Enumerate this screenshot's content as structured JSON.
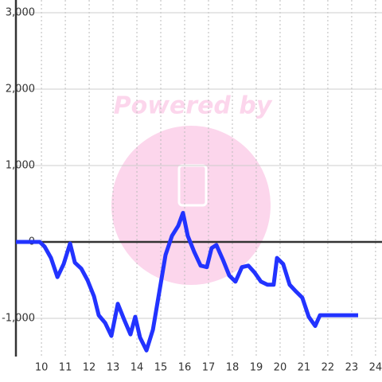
{
  "chart_data": {
    "type": "line",
    "watermark": "Powered by",
    "x": [
      8.93,
      9.93,
      10.13,
      10.4,
      10.67,
      10.93,
      11.2,
      11.4,
      11.67,
      11.93,
      12.2,
      12.4,
      12.67,
      12.93,
      13.2,
      13.47,
      13.73,
      13.93,
      14.13,
      14.4,
      14.67,
      14.93,
      15.2,
      15.47,
      15.73,
      15.93,
      16.13,
      16.4,
      16.67,
      16.93,
      17.13,
      17.33,
      17.6,
      17.87,
      18.13,
      18.4,
      18.67,
      18.93,
      19.2,
      19.47,
      19.73,
      19.87,
      20.13,
      20.4,
      20.67,
      20.93,
      21.2,
      21.47,
      21.67,
      21.93,
      23.27
    ],
    "series": [
      {
        "color": "#2233ff",
        "values": [
          0,
          0,
          -60,
          -210,
          -460,
          -290,
          -20,
          -270,
          -350,
          -500,
          -710,
          -960,
          -1060,
          -1230,
          -810,
          -1020,
          -1210,
          -980,
          -1250,
          -1420,
          -1150,
          -670,
          -170,
          80,
          210,
          380,
          80,
          -130,
          -310,
          -330,
          -80,
          -40,
          -230,
          -440,
          -520,
          -330,
          -310,
          -400,
          -520,
          -560,
          -560,
          -210,
          -290,
          -560,
          -650,
          -730,
          -980,
          -1100,
          -960,
          -960,
          -960
        ]
      }
    ],
    "xlim": [
      8.93,
      24.27
    ],
    "xticks": [
      10,
      11,
      12,
      13,
      14,
      15,
      16,
      17,
      18,
      19,
      20,
      21,
      22,
      23,
      24
    ],
    "ylim": [
      -1500,
      3000
    ],
    "yticks": [
      {
        "value": -1000,
        "label": "-1,000"
      },
      0,
      {
        "value": 1000,
        "label": "1,000"
      },
      {
        "value": 2000,
        "label": "2,000"
      },
      {
        "value": 3000,
        "label": "3,000"
      }
    ],
    "grid": true
  }
}
